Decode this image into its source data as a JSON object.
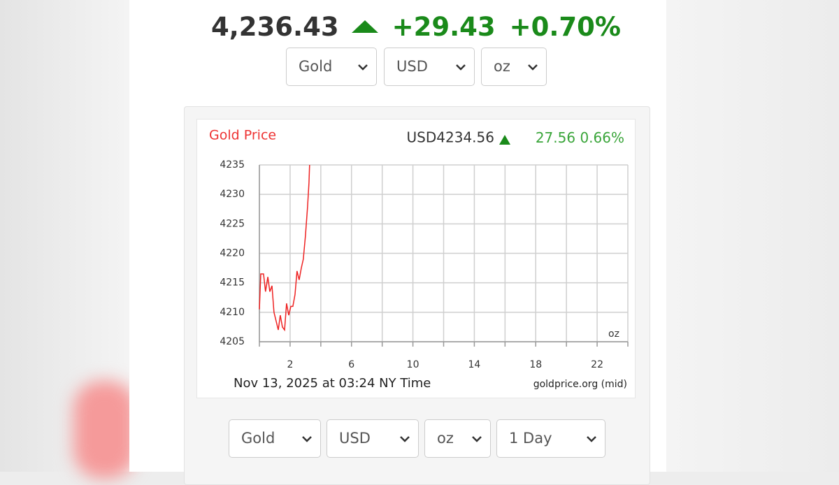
{
  "header": {
    "price": "4,236.43",
    "change": "+29.43",
    "change_pct": "+0.70%"
  },
  "top_selects": [
    "Gold",
    "USD",
    "oz"
  ],
  "chart_data": {
    "type": "line",
    "title": "Gold Price",
    "price_label": "USD4234.56",
    "change": "27.56",
    "change_pct": "0.66%",
    "unit": "oz",
    "footer": "Nov 13, 2025 at 03:24 NY Time",
    "source": "goldprice.org (mid)",
    "x": [
      0,
      0.09,
      0.27,
      0.4,
      0.55,
      0.68,
      0.82,
      0.95,
      1.09,
      1.23,
      1.36,
      1.5,
      1.64,
      1.77,
      1.91,
      2.05,
      2.18,
      2.32,
      2.45,
      2.59,
      2.73,
      2.86,
      3.0,
      3.14,
      3.23,
      3.27
    ],
    "values": [
      4210.5,
      4216.5,
      4216.5,
      4213.5,
      4216,
      4213.5,
      4214.5,
      4210,
      4208.5,
      4207,
      4209.5,
      4207.5,
      4207,
      4211.5,
      4209.5,
      4211,
      4211,
      4213,
      4217,
      4215.5,
      4217.5,
      4219,
      4223,
      4228,
      4232,
      4235
    ],
    "color": "#ee2222",
    "xlim": [
      0,
      24
    ],
    "xticks": [
      2,
      6,
      10,
      14,
      18,
      22
    ],
    "xminor_ticks": [
      0,
      4,
      8,
      12,
      16,
      20,
      24
    ],
    "ylim": [
      4205,
      4235
    ],
    "yticks": [
      4205,
      4210,
      4215,
      4220,
      4225,
      4230,
      4235
    ],
    "grid": true
  },
  "bottom_selects": [
    "Gold",
    "USD",
    "oz",
    "1 Day"
  ]
}
